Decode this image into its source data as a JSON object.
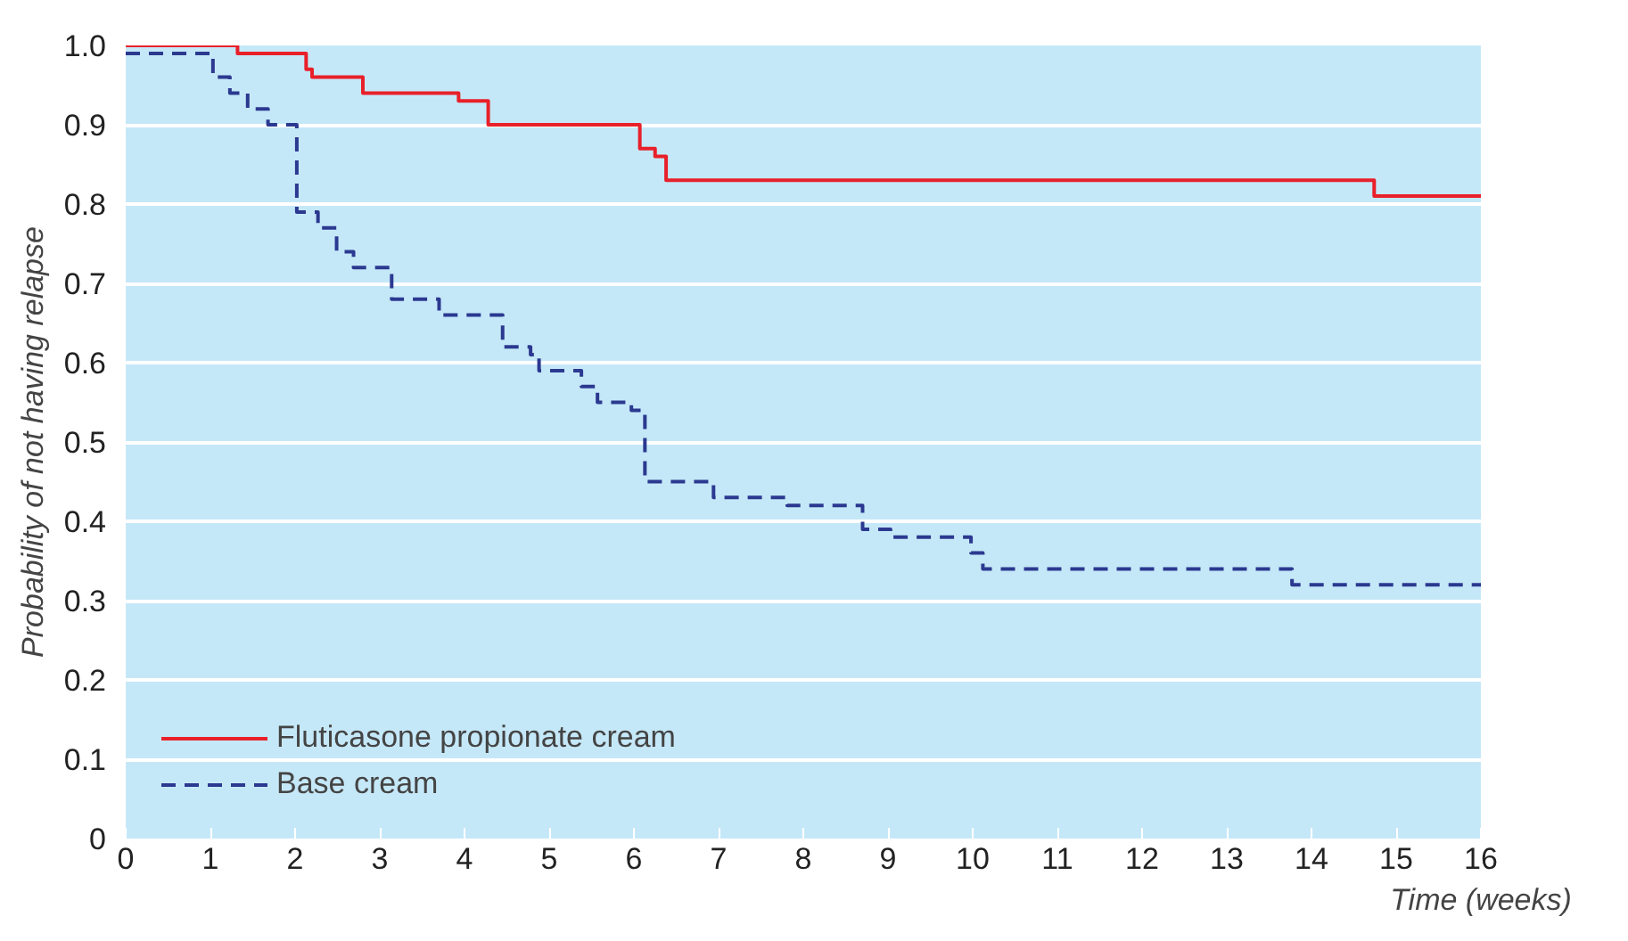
{
  "chart_data": {
    "type": "step",
    "xlabel": "Time (weeks)",
    "ylabel": "Probability of not having relapse",
    "xlim": [
      0,
      16
    ],
    "ylim": [
      0,
      1.0
    ],
    "xticks": [
      0,
      1,
      2,
      3,
      4,
      5,
      6,
      7,
      8,
      9,
      10,
      11,
      12,
      13,
      14,
      15,
      16
    ],
    "yticks": [
      0,
      0.1,
      0.2,
      0.3,
      0.4,
      0.5,
      0.6,
      0.7,
      0.8,
      0.9,
      {
        "value": 1.0,
        "label": "1.0"
      }
    ],
    "grid": "y",
    "legend": "bottom left",
    "series": [
      {
        "name": "Fluticasone propionate cream",
        "color": "#e8202a",
        "line_style": "solid",
        "x": [
          0,
          1.32,
          2.13,
          2.2,
          2.8,
          3.93,
          4.28,
          4.62,
          6.07,
          6.25,
          6.38,
          9.8,
          14.74,
          16
        ],
        "values": [
          1.0,
          0.99,
          0.97,
          0.96,
          0.94,
          0.93,
          0.9,
          0.9,
          0.87,
          0.86,
          0.83,
          0.83,
          0.81,
          0.81
        ]
      },
      {
        "name": "Base cream",
        "color": "#2b3990",
        "line_style": "dashed",
        "x": [
          0,
          1.03,
          1.23,
          1.44,
          1.68,
          2.02,
          2.27,
          2.49,
          2.69,
          3.14,
          3.7,
          4.45,
          4.78,
          4.88,
          5.38,
          5.57,
          5.97,
          6.13,
          6.94,
          7.81,
          8.7,
          9.03,
          9.98,
          10.12,
          13.77,
          16
        ],
        "values": [
          0.99,
          0.96,
          0.94,
          0.92,
          0.9,
          0.79,
          0.77,
          0.74,
          0.72,
          0.68,
          0.66,
          0.62,
          0.61,
          0.59,
          0.57,
          0.55,
          0.54,
          0.45,
          0.43,
          0.42,
          0.39,
          0.38,
          0.36,
          0.34,
          0.32,
          0.32
        ]
      }
    ]
  }
}
